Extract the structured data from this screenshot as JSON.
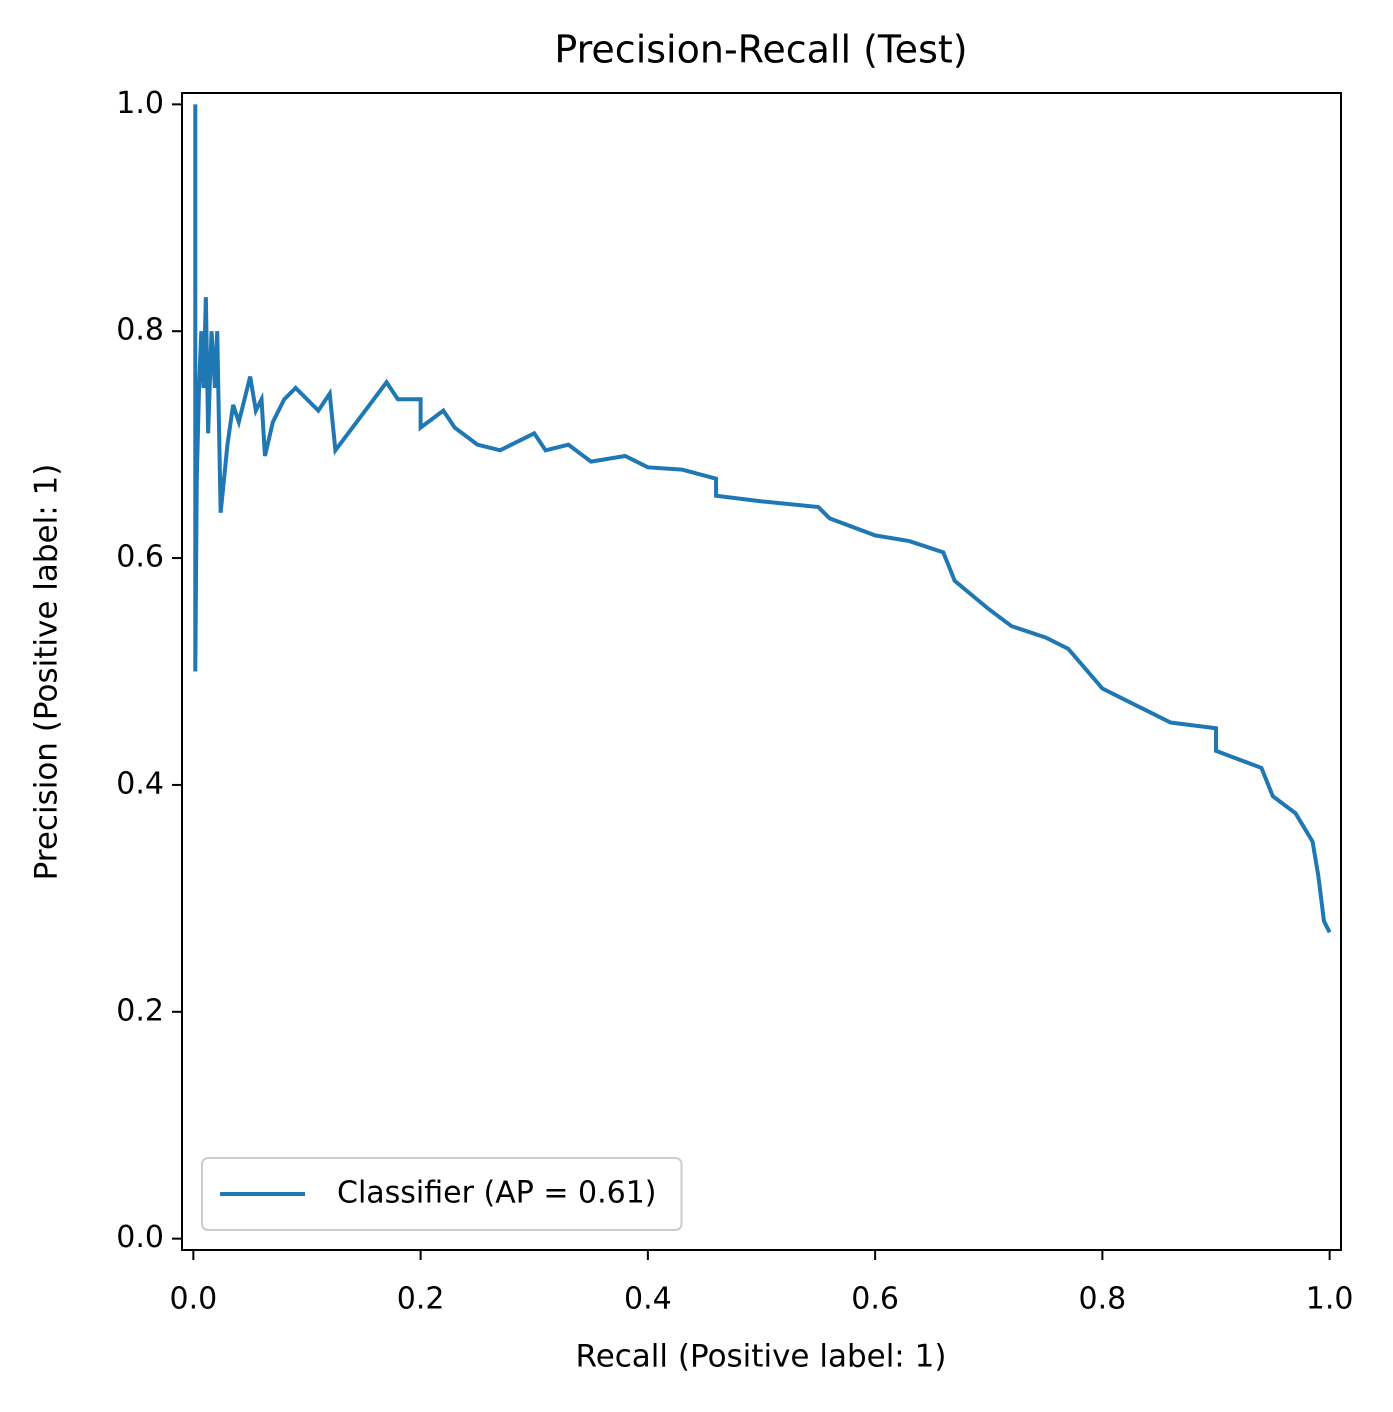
{
  "chart_data": {
    "type": "line",
    "title": "Precision-Recall (Test)",
    "x_label": "Recall (Positive label: 1)",
    "y_label": "Precision (Positive label: 1)",
    "xlim": [
      -0.01,
      1.01
    ],
    "ylim": [
      -0.01,
      1.01
    ],
    "xticks": [
      {
        "value": 0,
        "label": "0.0"
      },
      0.2,
      0.4,
      0.6,
      0.8,
      {
        "value": 1,
        "label": "1.0"
      }
    ],
    "yticks": [
      {
        "value": 0,
        "label": "0.0"
      },
      0.2,
      0.4,
      0.6,
      0.8,
      {
        "value": 1,
        "label": "1.0"
      }
    ],
    "legend": "lower left",
    "series": [
      {
        "name": "Classifier (AP = 0.61)",
        "color": "#1f77b4",
        "x": [
          0.0017,
          0.0017,
          0.003,
          0.005,
          0.007,
          0.009,
          0.011,
          0.013,
          0.016,
          0.019,
          0.021,
          0.024,
          0.03,
          0.035,
          0.04,
          0.05,
          0.055,
          0.06,
          0.063,
          0.07,
          0.08,
          0.09,
          0.1,
          0.11,
          0.12,
          0.125,
          0.17,
          0.18,
          0.2,
          0.2,
          0.22,
          0.23,
          0.25,
          0.27,
          0.3,
          0.31,
          0.33,
          0.35,
          0.38,
          0.4,
          0.43,
          0.46,
          0.46,
          0.5,
          0.55,
          0.56,
          0.6,
          0.63,
          0.66,
          0.67,
          0.7,
          0.72,
          0.75,
          0.77,
          0.8,
          0.83,
          0.86,
          0.9,
          0.9,
          0.94,
          0.95,
          0.97,
          0.985,
          0.99,
          0.995,
          1.0
        ],
        "values": [
          1.0,
          0.5,
          0.67,
          0.75,
          0.8,
          0.75,
          0.83,
          0.71,
          0.8,
          0.75,
          0.8,
          0.64,
          0.7,
          0.735,
          0.72,
          0.76,
          0.73,
          0.74,
          0.69,
          0.72,
          0.74,
          0.75,
          0.74,
          0.73,
          0.745,
          0.695,
          0.755,
          0.74,
          0.74,
          0.715,
          0.73,
          0.715,
          0.7,
          0.695,
          0.71,
          0.695,
          0.7,
          0.685,
          0.69,
          0.68,
          0.678,
          0.67,
          0.655,
          0.65,
          0.645,
          0.635,
          0.62,
          0.615,
          0.605,
          0.58,
          0.555,
          0.54,
          0.53,
          0.52,
          0.485,
          0.47,
          0.455,
          0.45,
          0.43,
          0.415,
          0.39,
          0.375,
          0.35,
          0.32,
          0.28,
          0.27
        ]
      }
    ]
  }
}
